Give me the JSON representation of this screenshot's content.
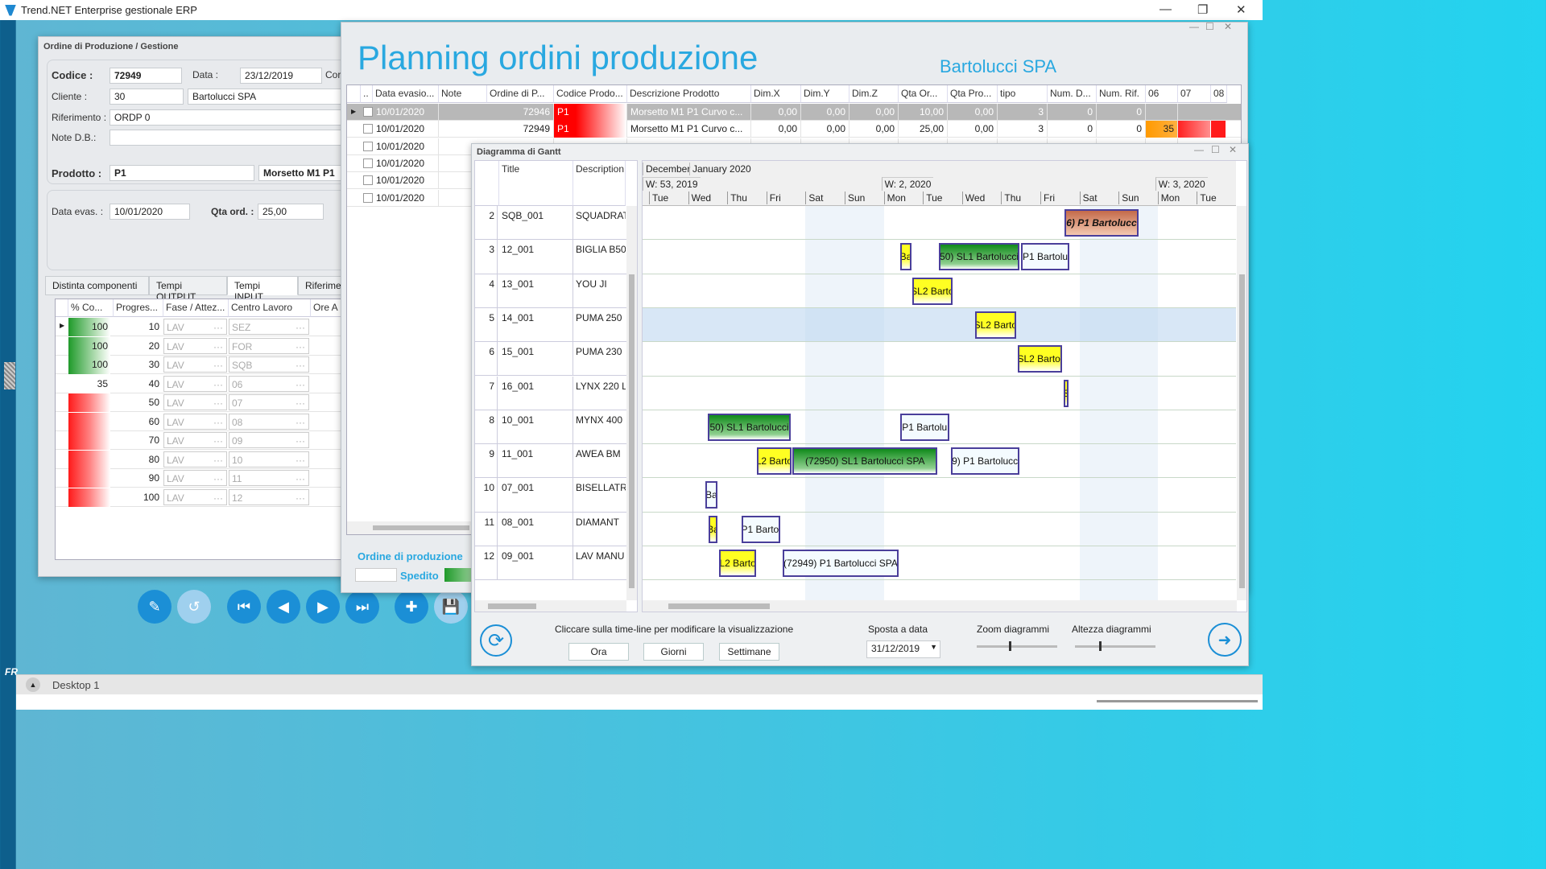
{
  "app": {
    "title": "Trend.NET Enterprise gestionale ERP"
  },
  "order_window": {
    "title": "Ordine di Produzione / Gestione",
    "codice_label": "Codice :",
    "codice": "72949",
    "data_label": "Data :",
    "data": "23/12/2019",
    "con_label": "Cor",
    "cliente_label": "Cliente :",
    "cliente_code": "30",
    "cliente_name": "Bartolucci SPA",
    "riferimento_label": "Riferimento :",
    "riferimento": "ORDP 0",
    "note_label": "Note D.B.:",
    "note": "",
    "prodotto_label": "Prodotto :",
    "prodotto": "P1",
    "prodotto_desc": "Morsetto M1 P1",
    "data_evas_label": "Data evas. :",
    "data_evas": "10/01/2020",
    "qta_label": "Qta ord. :",
    "qta": "25,00",
    "tabs": [
      {
        "label": "Distinta componenti"
      },
      {
        "label": "Tempi OUTPUT"
      },
      {
        "label": "Tempi INPUT",
        "active": true
      },
      {
        "label": "Riferime"
      }
    ],
    "columns": [
      "% Co...",
      "Progres...",
      "Fase / Attez...",
      "Centro Lavoro",
      "Ore A"
    ],
    "rows": [
      {
        "pct": "100",
        "prog": "10",
        "fase": "LAV",
        "centro": "SEZ",
        "color": "green"
      },
      {
        "pct": "100",
        "prog": "20",
        "fase": "LAV",
        "centro": "FOR",
        "color": "green"
      },
      {
        "pct": "100",
        "prog": "30",
        "fase": "LAV",
        "centro": "SQB",
        "color": "green"
      },
      {
        "pct": "35",
        "prog": "40",
        "fase": "LAV",
        "centro": "06",
        "color": "none"
      },
      {
        "pct": "",
        "prog": "50",
        "fase": "LAV",
        "centro": "07",
        "color": "red"
      },
      {
        "pct": "",
        "prog": "60",
        "fase": "LAV",
        "centro": "08",
        "color": "red"
      },
      {
        "pct": "",
        "prog": "70",
        "fase": "LAV",
        "centro": "09",
        "color": "red"
      },
      {
        "pct": "",
        "prog": "80",
        "fase": "LAV",
        "centro": "10",
        "color": "red"
      },
      {
        "pct": "",
        "prog": "90",
        "fase": "LAV",
        "centro": "11",
        "color": "red"
      },
      {
        "pct": "",
        "prog": "100",
        "fase": "LAV",
        "centro": "12",
        "color": "red"
      }
    ],
    "toolbar": [
      "edit-doc",
      "undo",
      "first",
      "prev",
      "next",
      "last",
      "add-doc",
      "save"
    ]
  },
  "planning": {
    "title": "Planning ordini produzione",
    "company": "Bartolucci SPA",
    "columns": [
      "..",
      "Data evasio...",
      "Note",
      "Ordine di P...",
      "Codice Prodo...",
      "Descrizione Prodotto",
      "Dim.X",
      "Dim.Y",
      "Dim.Z",
      "Qta Or...",
      "Qta Pro...",
      "tipo",
      "Num. D...",
      "Num. Rif.",
      "06",
      "07",
      "08"
    ],
    "rows": [
      {
        "date": "10/01/2020",
        "ordine": "72946",
        "codice": "P1",
        "desc": "Morsetto M1 P1 Curvo c...",
        "dx": "0,00",
        "dy": "0,00",
        "dz": "0,00",
        "qor": "10,00",
        "qpro": "0,00",
        "tipo": "3",
        "numd": "0",
        "numrif": "0",
        "c06": "",
        "selected": true
      },
      {
        "date": "10/01/2020",
        "ordine": "72949",
        "codice": "P1",
        "desc": "Morsetto M1 P1 Curvo c...",
        "dx": "0,00",
        "dy": "0,00",
        "dz": "0,00",
        "qor": "25,00",
        "qpro": "0,00",
        "tipo": "3",
        "numd": "0",
        "numrif": "0",
        "c06": "35"
      },
      {
        "date": "10/01/2020"
      },
      {
        "date": "10/01/2020"
      },
      {
        "date": "10/01/2020"
      },
      {
        "date": "10/01/2020"
      }
    ],
    "legend_title": "Ordine di produzione",
    "legend_spedito": "Spedito"
  },
  "gantt": {
    "title": "Diagramma di Gantt",
    "col_title": "Title",
    "col_description": "Description",
    "months": [
      "December",
      "January 2020"
    ],
    "weeks": [
      "W: 53, 2019",
      "W: 2, 2020",
      "W: 3, 2020"
    ],
    "days": [
      "Tue",
      "Wed",
      "Thu",
      "Fri",
      "Sat",
      "Sun",
      "Mon",
      "Tue",
      "Wed",
      "Thu",
      "Fri",
      "Sat",
      "Sun",
      "Mon",
      "Tue"
    ],
    "rows": [
      {
        "n": "2",
        "title": "SQB_001",
        "desc": "SQUADRAT"
      },
      {
        "n": "3",
        "title": "12_001",
        "desc": "BIGLIA B50"
      },
      {
        "n": "4",
        "title": "13_001",
        "desc": "YOU JI"
      },
      {
        "n": "5",
        "title": "14_001",
        "desc": "PUMA 250"
      },
      {
        "n": "6",
        "title": "15_001",
        "desc": "PUMA 230"
      },
      {
        "n": "7",
        "title": "16_001",
        "desc": "LYNX 220 L"
      },
      {
        "n": "8",
        "title": "10_001",
        "desc": "MYNX 400"
      },
      {
        "n": "9",
        "title": "11_001",
        "desc": "AWEA BM"
      },
      {
        "n": "10",
        "title": "07_001",
        "desc": "BISELLATRI"
      },
      {
        "n": "11",
        "title": "08_001",
        "desc": "DIAMANT"
      },
      {
        "n": "12",
        "title": "09_001",
        "desc": "LAV MANU"
      }
    ],
    "tasks": [
      {
        "row": 0,
        "start": "2020-01-10T15:00",
        "end": "2020-01-12T12:00",
        "label": "6) P1 Bartolucc",
        "kind": "late"
      },
      {
        "row": 1,
        "start": "2020-01-06T10:00",
        "end": "2020-01-06T17:00",
        "label": "Ba",
        "kind": "yellow"
      },
      {
        "row": 1,
        "start": "2020-01-07T10:00",
        "end": "2020-01-09T11:00",
        "label": "50) SL1 Bartolucci",
        "kind": "green"
      },
      {
        "row": 1,
        "start": "2020-01-09T12:00",
        "end": "2020-01-10T18:00",
        "label": "P1 Bartolu",
        "kind": "light"
      },
      {
        "row": 2,
        "start": "2020-01-06T17:30",
        "end": "2020-01-07T18:00",
        "label": "SL2 Barto",
        "kind": "yellow"
      },
      {
        "row": 3,
        "start": "2020-01-08T08:00",
        "end": "2020-01-09T09:00",
        "label": "SL2 Barto",
        "kind": "yellow"
      },
      {
        "row": 4,
        "start": "2020-01-09T10:00",
        "end": "2020-01-10T13:30",
        "label": "SL2 Bartol",
        "kind": "yellow"
      },
      {
        "row": 5,
        "start": "2020-01-10T14:30",
        "end": "2020-01-10T17:00",
        "label": "S",
        "kind": "yellow"
      },
      {
        "row": 6,
        "start": "2020-01-01T12:00",
        "end": "2020-01-03T15:00",
        "label": "50) SL1 Bartolucci",
        "kind": "green"
      },
      {
        "row": 6,
        "start": "2020-01-06T10:00",
        "end": "2020-01-07T16:00",
        "label": "P1 Bartolu",
        "kind": "light"
      },
      {
        "row": 7,
        "start": "2020-01-02T18:00",
        "end": "2020-01-03T15:30",
        "label": "L2 Barto",
        "kind": "yellow"
      },
      {
        "row": 7,
        "start": "2020-01-03T16:00",
        "end": "2020-01-07T09:00",
        "label": "(72950) SL1 Bartolucci SPA",
        "kind": "green"
      },
      {
        "row": 7,
        "start": "2020-01-07T17:00",
        "end": "2020-01-09T11:00",
        "label": "9) P1 Bartolucc",
        "kind": "light"
      },
      {
        "row": 8,
        "start": "2020-01-01T10:30",
        "end": "2020-01-01T18:00",
        "label": "Ba",
        "kind": "light"
      },
      {
        "row": 9,
        "start": "2020-01-01T12:30",
        "end": "2020-01-01T18:00",
        "label": "Ba",
        "kind": "yellow"
      },
      {
        "row": 9,
        "start": "2020-01-02T09:00",
        "end": "2020-01-03T08:30",
        "label": "P1 Bartol",
        "kind": "light"
      },
      {
        "row": 10,
        "start": "2020-01-01T19:00",
        "end": "2020-01-02T17:45",
        "label": "L2 Barto",
        "kind": "yellow"
      },
      {
        "row": 10,
        "start": "2020-01-03T10:00",
        "end": "2020-01-06T09:00",
        "label": "(72949) P1 Bartolucci SPA",
        "kind": "light"
      }
    ],
    "hint": "Cliccare sulla time-line per modificare la visualizzazione",
    "btn_ora": "Ora",
    "btn_giorni": "Giorni",
    "btn_settimane": "Settimane",
    "sposta_label": "Sposta a data",
    "sposta_date": "31/12/2019",
    "zoom_label": "Zoom diagrammi",
    "zoom_value": 0.4,
    "altezza_label": "Altezza diagrammi",
    "altezza_value": 0.3
  },
  "taskbar": {
    "desktop": "Desktop 1"
  },
  "colors": {
    "accent": "#29a8e0",
    "green": "#1f9a2a",
    "red": "#ff1a1a",
    "yellow": "#ffff22",
    "bar_border": "#4a3f9a"
  }
}
